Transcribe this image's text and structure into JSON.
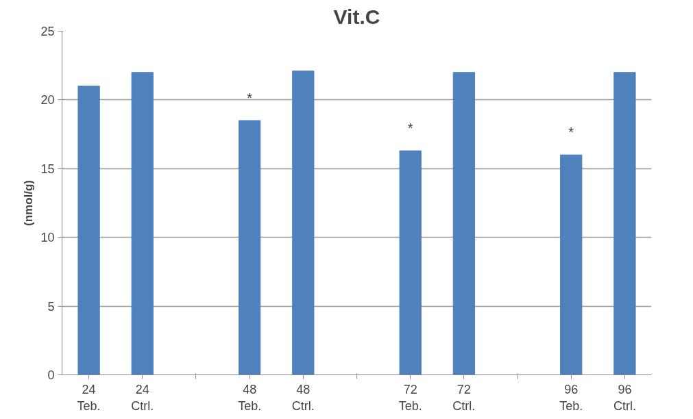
{
  "chart_data": {
    "type": "bar",
    "title": "Vit.C",
    "ylabel": "(nmol/g)",
    "categories": [
      "24\nTeb.",
      "24\nCtrl.",
      null,
      "48\nTeb.",
      "48\nCtrl.",
      null,
      "72\nTeb.",
      "72\nCtrl.",
      null,
      "96\nTeb.",
      "96\nCtrl."
    ],
    "values": [
      21,
      22,
      null,
      18.5,
      22.1,
      null,
      16.3,
      22,
      null,
      16,
      22
    ],
    "color": "#4f81bd",
    "ylim": [
      0,
      25
    ],
    "yticks": [
      0,
      5,
      10,
      15,
      20,
      25
    ],
    "grid": "y",
    "annotations": [
      {
        "text": "*",
        "x": "48\nTeb.",
        "y": 18.5
      },
      {
        "text": "*",
        "x": "72\nTeb.",
        "y": 16.3
      },
      {
        "text": "*",
        "x": "96\nTeb.",
        "y": 16
      }
    ]
  }
}
